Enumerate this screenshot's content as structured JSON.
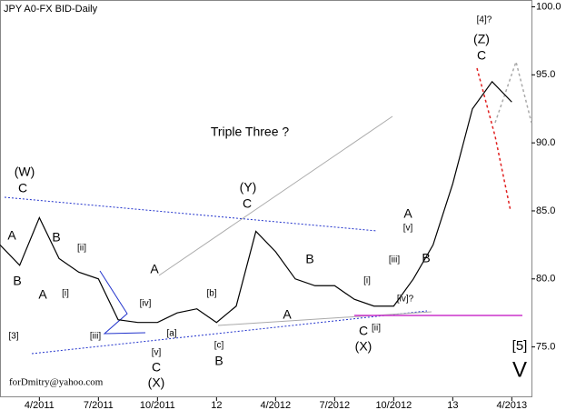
{
  "chart_data": {
    "type": "line",
    "title": "JPY A0-FX BID-Daily",
    "footer": "forDmitry@yahoo.com",
    "x": [
      "2011-02",
      "2011-03",
      "2011-04",
      "2011-05",
      "2011-06",
      "2011-07",
      "2011-08",
      "2011-09",
      "2011-10",
      "2011-11",
      "2011-12",
      "2012-01",
      "2012-02",
      "2012-03",
      "2012-04",
      "2012-05",
      "2012-06",
      "2012-07",
      "2012-08",
      "2012-09",
      "2012-10",
      "2012-11",
      "2012-12",
      "2013-01",
      "2013-02",
      "2013-03",
      "2013-04"
    ],
    "series": [
      {
        "name": "JPY A0-FX BID",
        "color": "#000000",
        "values": [
          82.5,
          81,
          84.5,
          81.5,
          80.5,
          80,
          77,
          76.8,
          76.8,
          77.5,
          77.8,
          76.8,
          78,
          83.5,
          82,
          80,
          79.5,
          79.5,
          78.5,
          78,
          78,
          80,
          82.5,
          87,
          92.5,
          94.5,
          93
        ]
      }
    ],
    "xlim": [
      "2011-02",
      "2013-05"
    ],
    "xticks": [
      {
        "value": "2011-04",
        "label": "4/2011"
      },
      {
        "value": "2011-07",
        "label": "7/2011"
      },
      {
        "value": "2011-10",
        "label": "10/2011"
      },
      {
        "value": "2012-01",
        "label": "12"
      },
      {
        "value": "2012-04",
        "label": "4/2012"
      },
      {
        "value": "2012-07",
        "label": "7/2012"
      },
      {
        "value": "2012-10",
        "label": "10/2012"
      },
      {
        "value": "2013-01",
        "label": "13"
      },
      {
        "value": "2013-04",
        "label": "4/2013"
      }
    ],
    "ylim": [
      71.3,
      100.5
    ],
    "yticks": [
      {
        "value": 75,
        "label": "75.0"
      },
      {
        "value": 80,
        "label": "80.0"
      },
      {
        "value": 85,
        "label": "85.0"
      },
      {
        "value": 90,
        "label": "90.0"
      },
      {
        "value": 95,
        "label": "95.0"
      },
      {
        "value": 100,
        "label": "100.0"
      }
    ],
    "annotations": [
      "(W)",
      "C",
      "A",
      "B",
      "[3]",
      "A",
      "B",
      "[ii]",
      "[i]",
      "[iii]",
      "[iv]",
      "[v]",
      "C",
      "(X)",
      "A",
      "[a]",
      "[b]",
      "[c]",
      "B",
      "(Y)",
      "C",
      "A",
      "B",
      "[i]",
      "[ii]",
      "C",
      "(X)",
      "[iii]",
      "[iv]?",
      "A",
      "[v]",
      "B",
      "[4]?",
      "(Z)",
      "C",
      "[5]",
      "V",
      "Triple Three ?"
    ]
  }
}
